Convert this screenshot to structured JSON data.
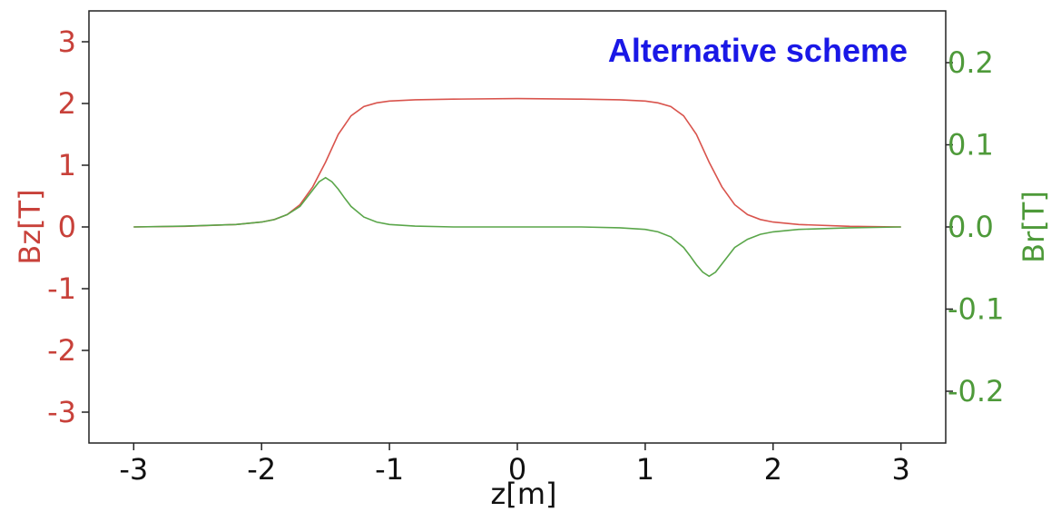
{
  "chart_data": {
    "type": "line",
    "annotation": "Alternative scheme",
    "xlabel": "z[m]",
    "ylabel_left": "Bz[T]",
    "ylabel_right": "Br[T]",
    "xlim": [
      -3.35,
      3.35
    ],
    "ylim_left": [
      -3.5,
      3.5
    ],
    "ylim_right": [
      -0.263,
      0.263
    ],
    "x_ticks": [
      "-3",
      "-2",
      "-1",
      "0",
      "1",
      "2",
      "3"
    ],
    "y_left_ticks": [
      "3",
      "2",
      "1",
      "0",
      "-1",
      "-2",
      "-3"
    ],
    "y_right_ticks": [
      "0.2",
      "0.1",
      "0.0",
      "-0.1",
      "-0.2"
    ],
    "grid": false,
    "colors": {
      "bz": "#d9544d",
      "br": "#5aa64a",
      "annotation": "#1a18e6"
    },
    "series": [
      {
        "axis": "left",
        "x": [
          -3.0,
          -2.6,
          -2.2,
          -2.0,
          -1.9,
          -1.8,
          -1.7,
          -1.6,
          -1.5,
          -1.4,
          -1.3,
          -1.2,
          -1.1,
          -1.0,
          -0.8,
          -0.5,
          0.0,
          0.5,
          0.8,
          1.0,
          1.1,
          1.2,
          1.3,
          1.4,
          1.5,
          1.6,
          1.7,
          1.8,
          1.9,
          2.0,
          2.2,
          2.6,
          3.0
        ],
        "values": [
          0.0,
          0.01,
          0.04,
          0.08,
          0.12,
          0.2,
          0.36,
          0.65,
          1.05,
          1.5,
          1.8,
          1.95,
          2.01,
          2.04,
          2.06,
          2.07,
          2.08,
          2.07,
          2.06,
          2.04,
          2.01,
          1.95,
          1.8,
          1.5,
          1.05,
          0.65,
          0.36,
          0.2,
          0.12,
          0.08,
          0.04,
          0.01,
          0.0
        ]
      },
      {
        "axis": "right",
        "x": [
          -3.0,
          -2.6,
          -2.2,
          -2.0,
          -1.9,
          -1.8,
          -1.7,
          -1.6,
          -1.55,
          -1.5,
          -1.45,
          -1.4,
          -1.35,
          -1.3,
          -1.2,
          -1.1,
          -1.0,
          -0.8,
          -0.5,
          0.0,
          0.5,
          0.8,
          1.0,
          1.1,
          1.2,
          1.3,
          1.35,
          1.4,
          1.45,
          1.5,
          1.55,
          1.6,
          1.7,
          1.8,
          1.9,
          2.0,
          2.2,
          2.6,
          3.0
        ],
        "values": [
          0.0,
          0.001,
          0.003,
          0.006,
          0.009,
          0.015,
          0.025,
          0.045,
          0.055,
          0.06,
          0.055,
          0.046,
          0.035,
          0.025,
          0.012,
          0.006,
          0.003,
          0.001,
          0.0,
          0.0,
          0.0,
          -0.001,
          -0.003,
          -0.006,
          -0.012,
          -0.025,
          -0.035,
          -0.046,
          -0.055,
          -0.06,
          -0.055,
          -0.045,
          -0.025,
          -0.015,
          -0.009,
          -0.006,
          -0.003,
          -0.001,
          0.0
        ]
      }
    ]
  }
}
